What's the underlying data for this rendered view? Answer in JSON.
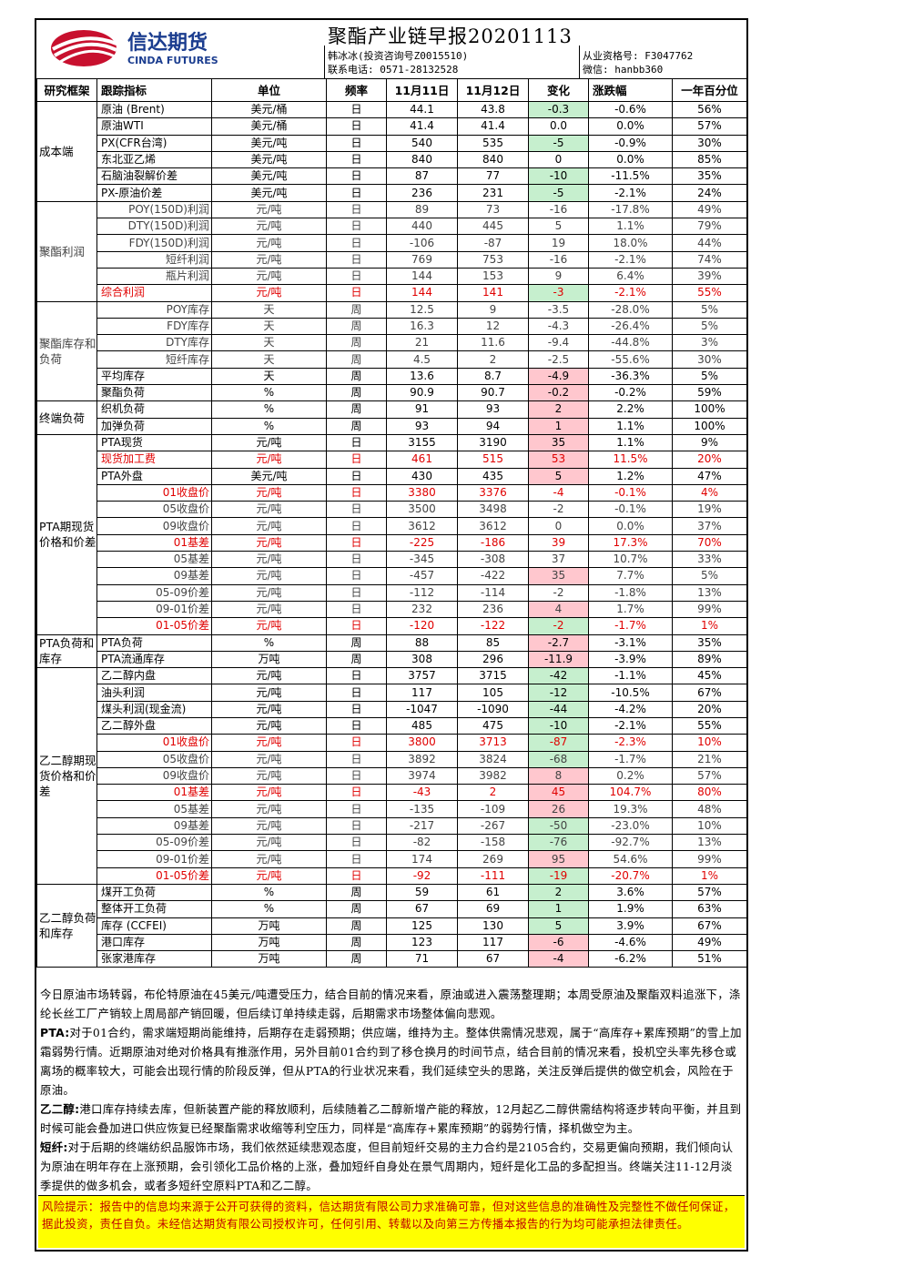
{
  "header": {
    "logo_cn": "信达期货",
    "logo_en": "CINDA FUTURES",
    "title": "聚酯产业链早报20201113",
    "analyst": "韩冰冰(投资咨询号Z0015510)",
    "phone": "联系电话: 0571-28132528",
    "license": "从业资格号: F3047762",
    "wechat": "微信: hanbb360"
  },
  "columns": [
    "研究框架",
    "跟踪指标",
    "单位",
    "频率",
    "11月11日",
    "11月12日",
    "变化",
    "涨跌幅",
    "一年百分位"
  ],
  "rows": [
    {
      "g": "成本端",
      "gs": 6,
      "n": "原油 (Brent)",
      "u": "美元/桶",
      "f": "日",
      "a": "44.1",
      "b": "43.8",
      "c": "-0.3",
      "p": "-0.6%",
      "y": "56%",
      "cc": "g"
    },
    {
      "n": "原油WTI",
      "u": "美元/桶",
      "f": "日",
      "a": "41.4",
      "b": "41.4",
      "c": "0.0",
      "p": "0.0%",
      "y": "57%"
    },
    {
      "n": "PX(CFR台湾)",
      "u": "美元/吨",
      "f": "日",
      "a": "540",
      "b": "535",
      "c": "-5",
      "p": "-0.9%",
      "y": "30%",
      "cc": "g"
    },
    {
      "n": "东北亚乙烯",
      "u": "美元/吨",
      "f": "日",
      "a": "840",
      "b": "840",
      "c": "0",
      "p": "0.0%",
      "y": "85%"
    },
    {
      "n": "石脑油裂解价差",
      "u": "美元/吨",
      "f": "日",
      "a": "87",
      "b": "77",
      "c": "-10",
      "p": "-11.5%",
      "y": "35%",
      "cc": "g"
    },
    {
      "n": "PX-原油价差",
      "u": "美元/吨",
      "f": "日",
      "a": "236",
      "b": "231",
      "c": "-5",
      "p": "-2.1%",
      "y": "24%",
      "cc": "g"
    },
    {
      "g": "聚酯利润",
      "gs": 6,
      "n": "POY(150D)利润",
      "u": "元/吨",
      "f": "日",
      "a": "89",
      "b": "73",
      "c": "-16",
      "p": "-17.8%",
      "y": "49%",
      "s": 1,
      "ra": 1
    },
    {
      "n": "DTY(150D)利润",
      "u": "元/吨",
      "f": "日",
      "a": "440",
      "b": "445",
      "c": "5",
      "p": "1.1%",
      "y": "79%",
      "s": 1,
      "ra": 1
    },
    {
      "n": "FDY(150D)利润",
      "u": "元/吨",
      "f": "日",
      "a": "-106",
      "b": "-87",
      "c": "19",
      "p": "18.0%",
      "y": "44%",
      "s": 1,
      "ra": 1
    },
    {
      "n": "短纤利润",
      "u": "元/吨",
      "f": "日",
      "a": "769",
      "b": "753",
      "c": "-16",
      "p": "-2.1%",
      "y": "74%",
      "s": 1,
      "ra": 1
    },
    {
      "n": "瓶片利润",
      "u": "元/吨",
      "f": "日",
      "a": "144",
      "b": "153",
      "c": "9",
      "p": "6.4%",
      "y": "39%",
      "s": 1,
      "ra": 1
    },
    {
      "n": "综合利润",
      "u": "元/吨",
      "f": "日",
      "a": "144",
      "b": "141",
      "c": "-3",
      "p": "-2.1%",
      "y": "55%",
      "red": 1,
      "cc": "g"
    },
    {
      "g": "聚酯库存和负荷",
      "gs": 6,
      "n": "POY库存",
      "u": "天",
      "f": "周",
      "a": "12.5",
      "b": "9",
      "c": "-3.5",
      "p": "-28.0%",
      "y": "5%",
      "s": 1,
      "ra": 1
    },
    {
      "n": "FDY库存",
      "u": "天",
      "f": "周",
      "a": "16.3",
      "b": "12",
      "c": "-4.3",
      "p": "-26.4%",
      "y": "5%",
      "s": 1,
      "ra": 1
    },
    {
      "n": "DTY库存",
      "u": "天",
      "f": "周",
      "a": "21",
      "b": "11.6",
      "c": "-9.4",
      "p": "-44.8%",
      "y": "3%",
      "s": 1,
      "ra": 1
    },
    {
      "n": "短纤库存",
      "u": "天",
      "f": "周",
      "a": "4.5",
      "b": "2",
      "c": "-2.5",
      "p": "-55.6%",
      "y": "30%",
      "s": 1,
      "ra": 1
    },
    {
      "n": "平均库存",
      "u": "天",
      "f": "周",
      "a": "13.6",
      "b": "8.7",
      "c": "-4.9",
      "p": "-36.3%",
      "y": "5%",
      "cc": "p"
    },
    {
      "n": "聚酯负荷",
      "u": "%",
      "f": "周",
      "a": "90.9",
      "b": "90.7",
      "c": "-0.2",
      "p": "-0.2%",
      "y": "59%",
      "cc": "p"
    },
    {
      "g": "终端负荷",
      "gs": 2,
      "n": "织机负荷",
      "u": "%",
      "f": "周",
      "a": "91",
      "b": "93",
      "c": "2",
      "p": "2.2%",
      "y": "100%",
      "cc": "p"
    },
    {
      "n": "加弹负荷",
      "u": "%",
      "f": "周",
      "a": "93",
      "b": "94",
      "c": "1",
      "p": "1.1%",
      "y": "100%",
      "cc": "p"
    },
    {
      "g": "PTA期现货价格和价差",
      "gs": 12,
      "n": "PTA现货",
      "u": "元/吨",
      "f": "日",
      "a": "3155",
      "b": "3190",
      "c": "35",
      "p": "1.1%",
      "y": "9%",
      "cc": "p"
    },
    {
      "n": "现货加工费",
      "u": "元/吨",
      "f": "日",
      "a": "461",
      "b": "515",
      "c": "53",
      "p": "11.5%",
      "y": "20%",
      "red": 1,
      "cc": "p"
    },
    {
      "n": "PTA外盘",
      "u": "美元/吨",
      "f": "日",
      "a": "430",
      "b": "435",
      "c": "5",
      "p": "1.2%",
      "y": "47%",
      "cc": "p"
    },
    {
      "n": "01收盘价",
      "u": "元/吨",
      "f": "日",
      "a": "3380",
      "b": "3376",
      "c": "-4",
      "p": "-0.1%",
      "y": "4%",
      "red": 1,
      "ra": 1
    },
    {
      "n": "05收盘价",
      "u": "元/吨",
      "f": "日",
      "a": "3500",
      "b": "3498",
      "c": "-2",
      "p": "-0.1%",
      "y": "19%",
      "s": 1,
      "ra": 1
    },
    {
      "n": "09收盘价",
      "u": "元/吨",
      "f": "日",
      "a": "3612",
      "b": "3612",
      "c": "0",
      "p": "0.0%",
      "y": "37%",
      "s": 1,
      "ra": 1
    },
    {
      "n": "01基差",
      "u": "元/吨",
      "f": "日",
      "a": "-225",
      "b": "-186",
      "c": "39",
      "p": "17.3%",
      "y": "70%",
      "red": 1,
      "ra": 1
    },
    {
      "n": "05基差",
      "u": "元/吨",
      "f": "日",
      "a": "-345",
      "b": "-308",
      "c": "37",
      "p": "10.7%",
      "y": "33%",
      "s": 1,
      "ra": 1
    },
    {
      "n": "09基差",
      "u": "元/吨",
      "f": "日",
      "a": "-457",
      "b": "-422",
      "c": "35",
      "p": "7.7%",
      "y": "5%",
      "s": 1,
      "ra": 1,
      "cc": "p"
    },
    {
      "n": "05-09价差",
      "u": "元/吨",
      "f": "日",
      "a": "-112",
      "b": "-114",
      "c": "-2",
      "p": "-1.8%",
      "y": "13%",
      "s": 1,
      "ra": 1
    },
    {
      "n": "09-01价差",
      "u": "元/吨",
      "f": "日",
      "a": "232",
      "b": "236",
      "c": "4",
      "p": "1.7%",
      "y": "99%",
      "s": 1,
      "ra": 1,
      "cc": "p"
    },
    {
      "n": "01-05价差",
      "u": "元/吨",
      "f": "日",
      "a": "-120",
      "b": "-122",
      "c": "-2",
      "p": "-1.7%",
      "y": "1%",
      "red": 1,
      "ra": 1,
      "cc": "g"
    },
    {
      "g": "PTA负荷和库存",
      "gs": 2,
      "n": "PTA负荷",
      "u": "%",
      "f": "周",
      "a": "88",
      "b": "85",
      "c": "-2.7",
      "p": "-3.1%",
      "y": "35%",
      "cc": "p"
    },
    {
      "n": "PTA流通库存",
      "u": "万吨",
      "f": "周",
      "a": "308",
      "b": "296",
      "c": "-11.9",
      "p": "-3.9%",
      "y": "89%",
      "cc": "p"
    },
    {
      "g": "乙二醇期现货价格和价差",
      "gs": 13,
      "n": "乙二醇内盘",
      "u": "元/吨",
      "f": "日",
      "a": "3757",
      "b": "3715",
      "c": "-42",
      "p": "-1.1%",
      "y": "45%",
      "cc": "g"
    },
    {
      "n": "油头利润",
      "u": "元/吨",
      "f": "日",
      "a": "117",
      "b": "105",
      "c": "-12",
      "p": "-10.5%",
      "y": "67%",
      "cc": "g"
    },
    {
      "n": "煤头利润(现金流)",
      "u": "元/吨",
      "f": "日",
      "a": "-1047",
      "b": "-1090",
      "c": "-44",
      "p": "-4.2%",
      "y": "20%",
      "cc": "g"
    },
    {
      "n": "乙二醇外盘",
      "u": "元/吨",
      "f": "日",
      "a": "485",
      "b": "475",
      "c": "-10",
      "p": "-2.1%",
      "y": "55%",
      "cc": "g"
    },
    {
      "n": "01收盘价",
      "u": "元/吨",
      "f": "日",
      "a": "3800",
      "b": "3713",
      "c": "-87",
      "p": "-2.3%",
      "y": "10%",
      "red": 1,
      "ra": 1,
      "cc": "g"
    },
    {
      "n": "05收盘价",
      "u": "元/吨",
      "f": "日",
      "a": "3892",
      "b": "3824",
      "c": "-68",
      "p": "-1.7%",
      "y": "21%",
      "s": 1,
      "ra": 1,
      "cc": "g"
    },
    {
      "n": "09收盘价",
      "u": "元/吨",
      "f": "日",
      "a": "3974",
      "b": "3982",
      "c": "8",
      "p": "0.2%",
      "y": "57%",
      "s": 1,
      "ra": 1,
      "cc": "p"
    },
    {
      "n": "01基差",
      "u": "元/吨",
      "f": "日",
      "a": "-43",
      "b": "2",
      "c": "45",
      "p": "104.7%",
      "y": "80%",
      "red": 1,
      "ra": 1,
      "cc": "p"
    },
    {
      "n": "05基差",
      "u": "元/吨",
      "f": "日",
      "a": "-135",
      "b": "-109",
      "c": "26",
      "p": "19.3%",
      "y": "48%",
      "s": 1,
      "ra": 1,
      "cc": "p"
    },
    {
      "n": "09基差",
      "u": "元/吨",
      "f": "日",
      "a": "-217",
      "b": "-267",
      "c": "-50",
      "p": "-23.0%",
      "y": "10%",
      "s": 1,
      "ra": 1,
      "cc": "g"
    },
    {
      "n": "05-09价差",
      "u": "元/吨",
      "f": "日",
      "a": "-82",
      "b": "-158",
      "c": "-76",
      "p": "-92.7%",
      "y": "13%",
      "s": 1,
      "ra": 1,
      "cc": "g"
    },
    {
      "n": "09-01价差",
      "u": "元/吨",
      "f": "日",
      "a": "174",
      "b": "269",
      "c": "95",
      "p": "54.6%",
      "y": "99%",
      "s": 1,
      "ra": 1,
      "cc": "p"
    },
    {
      "n": "01-05价差",
      "u": "元/吨",
      "f": "日",
      "a": "-92",
      "b": "-111",
      "c": "-19",
      "p": "-20.7%",
      "y": "1%",
      "red": 1,
      "ra": 1,
      "cc": "g"
    },
    {
      "g": "乙二醇负荷和库存",
      "gs": 5,
      "n": "煤开工负荷",
      "u": "%",
      "f": "周",
      "a": "59",
      "b": "61",
      "c": "2",
      "p": "3.6%",
      "y": "57%",
      "cc": "g"
    },
    {
      "n": "整体开工负荷",
      "u": "%",
      "f": "周",
      "a": "67",
      "b": "69",
      "c": "1",
      "p": "1.9%",
      "y": "63%",
      "cc": "g"
    },
    {
      "n": "库存 (CCFEI)",
      "u": "万吨",
      "f": "周",
      "a": "125",
      "b": "130",
      "c": "5",
      "p": "3.9%",
      "y": "67%",
      "cc": "g"
    },
    {
      "n": "港口库存",
      "u": "万吨",
      "f": "周",
      "a": "123",
      "b": "117",
      "c": "-6",
      "p": "-4.6%",
      "y": "49%",
      "cc": "p"
    },
    {
      "n": "张家港库存",
      "u": "万吨",
      "f": "周",
      "a": "71",
      "b": "67",
      "c": "-4",
      "p": "-6.2%",
      "y": "51%",
      "cc": "p"
    }
  ],
  "commentary": {
    "p1": "今日原油市场转弱，布伦特原油在45美元/吨遭受压力，结合目前的情况来看，原油或进入震荡整理期；本周受原油及聚酯双料追涨下，涤纶长丝工厂产销较上周局部产销回暖，但后续订单持续走弱，后期需求市场整体偏向悲观。",
    "p2_label": "PTA:",
    "p2": "对于01合约，需求端短期尚能维持，后期存在走弱预期；供应端，维持为主。整体供需情况悲观，属于“高库存+累库预期”的雪上加霜弱势行情。近期原油对绝对价格具有推涨作用，另外目前01合约到了移仓换月的时间节点，结合目前的情况来看，投机空头率先移仓或离场的概率较大，可能会出现行情的阶段反弹，但从PTA的行业状况来看，我们延续空头的思路，关注反弹后提供的做空机会，风险在于原油。",
    "p3_label": "乙二醇:",
    "p3": "港口库存持续去库，但新装置产能的释放顺利，后续随着乙二醇新增产能的释放，12月起乙二醇供需结构将逐步转向平衡，并且到时候可能会叠加进口供应恢复已经聚酯需求收缩等利空压力，同样是“高库存+累库预期”的弱势行情，择机做空为主。",
    "p4_label": "短纤:",
    "p4": "对于后期的终端纺织品服饰市场，我们依然延续悲观态度，但目前短纤交易的主力合约是2105合约，交易更偏向预期，我们倾向认为原油在明年存在上涨预期，会引领化工品价格的上涨，叠加短纤自身处在景气周期内，短纤是化工品的多配担当。终端关注11-12月淡季提供的做多机会，或者多短纤空原料PTA和乙二醇。"
  },
  "risk": "风险提示：报告中的信息均来源于公开可获得的资料，信达期货有限公司力求准确可靠，但对这些信息的准确性及完整性不做任何保证，据此投资，责任自负。未经信达期货有限公司授权许可，任何引用、转载以及向第三方传播本报告的行为均可能承担法律责任。",
  "colors": {
    "green_fill": "#c6efce",
    "pink_fill": "#ffc7ce",
    "highlight_red": "#e00000",
    "risk_bg": "#ffff00",
    "logo_red": "#c8102e",
    "logo_blue": "#1b3d8f"
  }
}
